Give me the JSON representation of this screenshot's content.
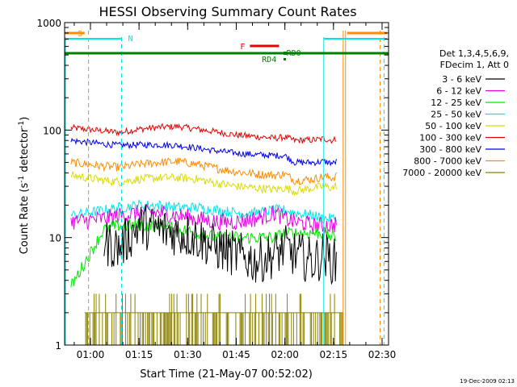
{
  "chart_data": {
    "type": "line",
    "title": "HESSI Observing Summary Count Rates",
    "xlabel": "Start Time (21-May-07 00:52:02)",
    "ylabel_main": "Count Rate (s",
    "ylabel_sup1": "-1",
    "ylabel_mid": " detector",
    "ylabel_sup2": "-1",
    "ylabel_end": ")",
    "xlim": [
      "00:52:02",
      "02:32:00"
    ],
    "ylim": [
      1,
      1000
    ],
    "y_scale": "log",
    "x_ticks": [
      "01:00",
      "01:15",
      "01:30",
      "01:45",
      "02:00",
      "02:15",
      "02:30"
    ],
    "y_ticks": [
      "1",
      "10",
      "100",
      "1000"
    ],
    "legend": {
      "placement": "right",
      "header": [
        "Det 1,3,4,5,6,9,",
        "FDecim 1, Att 0"
      ],
      "entries": [
        {
          "label": "3 - 6 keV",
          "color": "#000000"
        },
        {
          "label": "6 - 12 keV",
          "color": "#e600e6"
        },
        {
          "label": "12 - 25 keV",
          "color": "#00e600"
        },
        {
          "label": "25 - 50 keV",
          "color": "#00e6e6"
        },
        {
          "label": "50 - 100 keV",
          "color": "#dcdc00"
        },
        {
          "label": "100 - 300 keV",
          "color": "#e60000"
        },
        {
          "label": "300 - 800 keV",
          "color": "#0000e6"
        },
        {
          "label": "800 - 7000 keV",
          "color": "#ff8c00"
        },
        {
          "label": "7000 - 20000 keV",
          "color": "#8b8000"
        }
      ]
    },
    "flags": [
      {
        "label": "S",
        "color": "#ff8c00"
      },
      {
        "label": "N",
        "color": "#00e6e6"
      },
      {
        "label": "F",
        "color": "#e60000"
      },
      {
        "label": "RD0",
        "color": "#008000"
      },
      {
        "label": "RD4",
        "color": "#008000"
      }
    ],
    "series": [
      {
        "name": "100 - 300 keV",
        "color": "#e60000",
        "x": [
          0.9,
          1.07,
          1.15,
          1.25,
          1.35,
          1.45,
          1.55,
          1.65,
          1.75,
          1.85,
          1.95,
          2.0,
          2.05,
          2.15,
          2.2,
          2.25,
          2.27
        ],
        "y": [
          105,
          98,
          95,
          102,
          106,
          108,
          102,
          96,
          90,
          87,
          84,
          86,
          80,
          81,
          83,
          80,
          85
        ]
      },
      {
        "name": "300 - 800 keV",
        "color": "#0000e6",
        "x": [
          0.9,
          1.07,
          1.15,
          1.25,
          1.35,
          1.45,
          1.55,
          1.65,
          1.75,
          1.85,
          1.95,
          2.0,
          2.05,
          2.15,
          2.2,
          2.25,
          2.27
        ],
        "y": [
          80,
          74,
          72,
          73,
          73,
          72,
          68,
          64,
          61,
          59,
          58,
          58,
          50,
          50,
          51,
          49,
          52
        ]
      },
      {
        "name": "800 - 7000 keV",
        "color": "#ff8c00",
        "x": [
          0.9,
          1.07,
          1.15,
          1.25,
          1.35,
          1.45,
          1.55,
          1.65,
          1.75,
          1.85,
          1.95,
          2.0,
          2.05,
          2.15,
          2.2,
          2.25,
          2.27
        ],
        "y": [
          50,
          46,
          45,
          48,
          50,
          51,
          48,
          44,
          41,
          39,
          38,
          39,
          34,
          35,
          37,
          36,
          38
        ]
      },
      {
        "name": "50 - 100 keV",
        "color": "#dcdc00",
        "x": [
          0.9,
          1.07,
          1.15,
          1.25,
          1.35,
          1.45,
          1.55,
          1.65,
          1.75,
          1.85,
          1.95,
          2.0,
          2.05,
          2.15,
          2.2,
          2.25,
          2.27
        ],
        "y": [
          38,
          34,
          33,
          35,
          36,
          36,
          35,
          32,
          30,
          29,
          28,
          29,
          27,
          29,
          30,
          29,
          31
        ]
      },
      {
        "name": "25 - 50 keV",
        "color": "#00e6e6",
        "x": [
          0.9,
          1.07,
          1.15,
          1.25,
          1.35,
          1.45,
          1.55,
          1.65,
          1.75,
          1.85,
          1.95,
          2.0,
          2.05,
          2.15,
          2.2,
          2.25,
          2.27
        ],
        "y": [
          16,
          18,
          19,
          20,
          20,
          19,
          19,
          18,
          17,
          17,
          18,
          18,
          17,
          16,
          15,
          15,
          16
        ]
      },
      {
        "name": "6 - 12 keV",
        "color": "#e600e6",
        "x": [
          0.9,
          1.07,
          1.15,
          1.25,
          1.35,
          1.45,
          1.55,
          1.65,
          1.75,
          1.85,
          1.95,
          2.0,
          2.05,
          2.15,
          2.2,
          2.25,
          2.27
        ],
        "y": [
          14,
          15,
          16,
          17,
          17,
          16,
          15,
          14,
          14,
          15,
          17,
          15,
          14,
          13,
          13,
          13,
          14
        ]
      },
      {
        "name": "12 - 25 keV",
        "color": "#00e600",
        "x": [
          0.9,
          1.07,
          1.15,
          1.25,
          1.35,
          1.45,
          1.55,
          1.65,
          1.75,
          1.85,
          1.95,
          2.0,
          2.05,
          2.15,
          2.2,
          2.25,
          2.27
        ],
        "y": [
          3.5,
          12,
          13,
          13,
          13,
          12,
          11,
          10,
          10,
          10,
          10,
          11,
          11,
          11,
          11,
          10,
          10
        ]
      },
      {
        "name": "3 - 6 keV",
        "color": "#000000",
        "x": [
          1.07,
          1.15,
          1.25,
          1.35,
          1.45,
          1.55,
          1.65,
          1.75,
          1.85,
          1.95,
          2.0,
          2.05,
          2.15,
          2.2,
          2.25,
          2.27
        ],
        "y": [
          9,
          8,
          13,
          12,
          11,
          10,
          8,
          7,
          6,
          7,
          8,
          7,
          6,
          7,
          6,
          6
        ]
      }
    ]
  }
}
